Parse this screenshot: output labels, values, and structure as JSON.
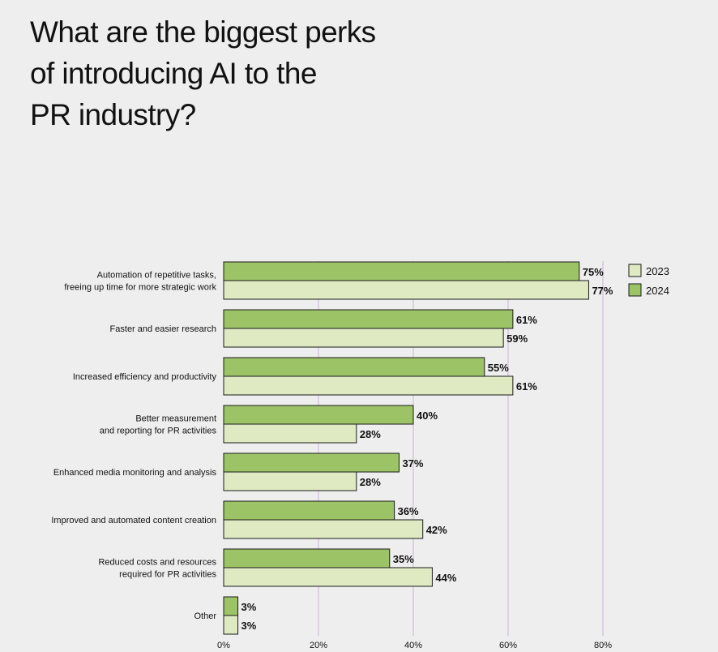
{
  "title_lines": [
    "What are the biggest perks",
    "of introducing AI to the",
    "PR industry?"
  ],
  "colors": {
    "y2023": "#dfeac3",
    "y2024": "#9cc466",
    "grid": "#cbb3d4",
    "stroke": "#1a1a1a"
  },
  "chart_data": {
    "type": "bar",
    "orientation": "horizontal",
    "title": "What are the biggest perks of introducing AI to the PR industry?",
    "categories": [
      [
        "Automation of repetitive tasks,",
        "freeing up time for more strategic work"
      ],
      [
        "Faster and easier research"
      ],
      [
        "Increased efficiency and productivity"
      ],
      [
        "Better measurement",
        "and reporting for PR activities"
      ],
      [
        "Enhanced media monitoring and analysis"
      ],
      [
        "Improved and automated content creation"
      ],
      [
        "Reduced costs and resources",
        "required for PR activities"
      ],
      [
        "Other"
      ]
    ],
    "series": [
      {
        "name": "2024",
        "values": [
          75,
          61,
          55,
          40,
          37,
          36,
          35,
          3
        ]
      },
      {
        "name": "2023",
        "values": [
          77,
          59,
          61,
          28,
          28,
          42,
          44,
          3
        ]
      }
    ],
    "value_labels": {
      "2024": [
        "75%",
        "61%",
        "55%",
        "40%",
        "37%",
        "36%",
        "35%",
        "3%"
      ],
      "2023": [
        "77%",
        "59%",
        "61%",
        "28%",
        "28%",
        "42%",
        "44%",
        "3%"
      ]
    },
    "xticks": [
      0,
      20,
      40,
      60,
      80
    ],
    "xtick_labels": [
      "0%",
      "20%",
      "40%",
      "60%",
      "80%"
    ],
    "xlim": [
      0,
      80
    ],
    "grid": true,
    "legend": {
      "placement": "top-right",
      "entries": [
        "2023",
        "2024"
      ]
    }
  }
}
